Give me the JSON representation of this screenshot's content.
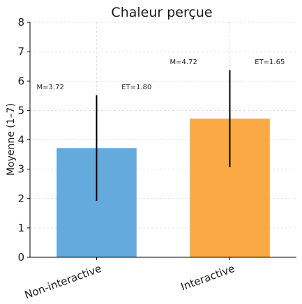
{
  "chart_data": {
    "type": "bar",
    "title": "Chaleur perçue",
    "xlabel": "",
    "ylabel": "Moyenne (1–7)",
    "ylim": [
      0,
      8
    ],
    "yticks": [
      "0",
      "1",
      "2",
      "3",
      "4",
      "5",
      "6",
      "7",
      "8"
    ],
    "categories": [
      "Non-interactive",
      "Interactive"
    ],
    "values": [
      3.72,
      4.72
    ],
    "errors": [
      1.8,
      1.65
    ],
    "colors": [
      "#5DA5DA",
      "#FAA43A"
    ],
    "annotations": [
      {
        "mean_label": "M=3.72",
        "sd_label": "ET=1.80"
      },
      {
        "mean_label": "M=4.72",
        "sd_label": "ET=1.65"
      }
    ],
    "grid": true,
    "legend": "none"
  }
}
